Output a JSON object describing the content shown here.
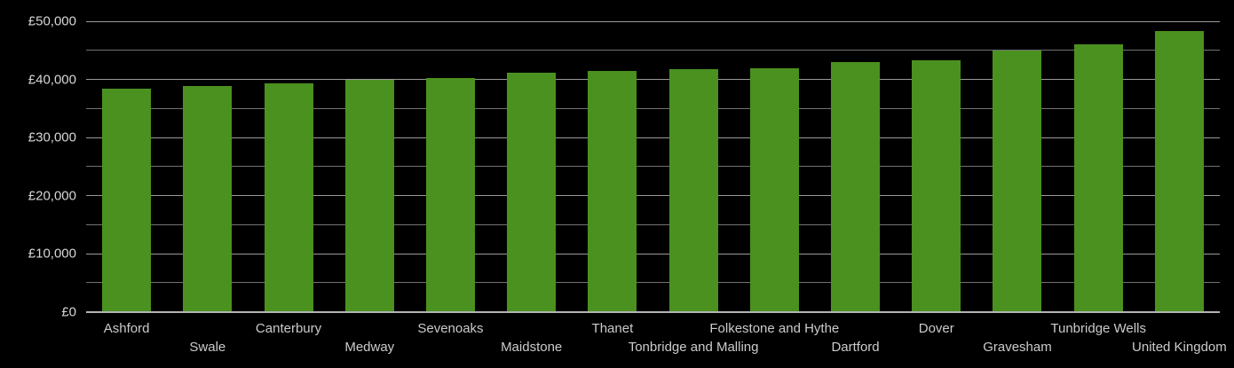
{
  "chart_data": {
    "type": "bar",
    "title": "",
    "currency": "£",
    "categories": [
      "Ashford",
      "Swale",
      "Canterbury",
      "Medway",
      "Sevenoaks",
      "Maidstone",
      "Thanet",
      "Tonbridge and Malling",
      "Folkestone and Hythe",
      "Dartford",
      "Dover",
      "Gravesham",
      "Tunbridge Wells",
      "United Kingdom"
    ],
    "values": [
      38400,
      38800,
      39300,
      39900,
      40300,
      41100,
      41400,
      41700,
      41900,
      43000,
      43300,
      44900,
      46100,
      48300
    ],
    "ylim": [
      0,
      50000
    ],
    "y_major_ticks": [
      {
        "value": 50000,
        "label": "£50,000"
      },
      {
        "value": 40000,
        "label": "£40,000"
      },
      {
        "value": 30000,
        "label": "£30,000"
      },
      {
        "value": 20000,
        "label": "£20,000"
      },
      {
        "value": 10000,
        "label": "£10,000"
      },
      {
        "value": 0,
        "label": "£0"
      }
    ],
    "y_minor_interval": 5000,
    "grid": true,
    "legend_position": "none",
    "x_label_layout": "alternating-two-rows",
    "colors": {
      "background": "#000000",
      "bar": "#4a9120",
      "grid_major": "#9a9a9a",
      "grid_minor": "#717171",
      "axis": "#b4b4b4",
      "y_label_text": "#d6d6d6",
      "x_label_text": "#cbcbcb"
    }
  }
}
